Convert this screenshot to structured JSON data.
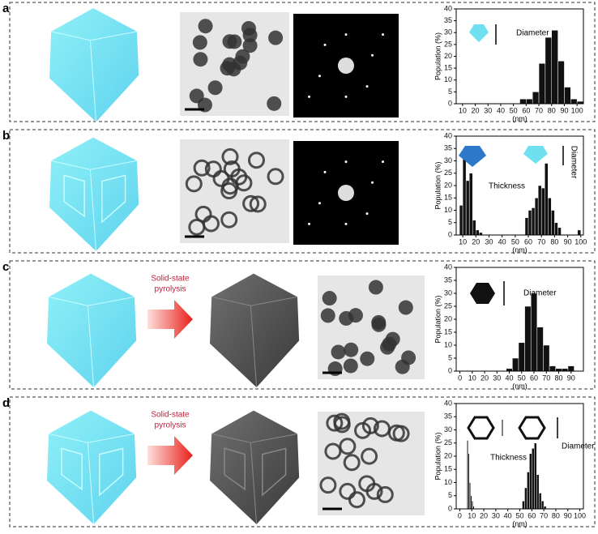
{
  "panel_labels": [
    "a",
    "b",
    "c",
    "d"
  ],
  "process_labels": [
    null,
    null,
    [
      "Solid-state",
      "pyrolysis"
    ],
    [
      "Solid-state",
      "pyrolysis"
    ]
  ],
  "chart_data": [
    {
      "type": "histogram",
      "ylabel": "Population (%)",
      "xlabel": "(nm)",
      "annotations": [
        "Diameter"
      ],
      "bins": [
        55,
        60,
        65,
        70,
        75,
        80,
        85,
        90,
        95,
        100,
        105
      ],
      "values": [
        2,
        2,
        5,
        17,
        28,
        31,
        18,
        7,
        2,
        1
      ],
      "color": "#111111",
      "xlim": [
        5,
        105
      ],
      "xticks": [
        10,
        20,
        30,
        40,
        50,
        60,
        70,
        80,
        90,
        100
      ],
      "ylim": [
        0,
        40
      ],
      "yticks": [
        0,
        5,
        10,
        15,
        20,
        25,
        30,
        35,
        40
      ]
    },
    {
      "type": "histogram",
      "ylabel": "Population (%)",
      "xlabel": "(nm)",
      "annotations": [
        "Thickness",
        "Diameter"
      ],
      "bins": [
        7.5,
        10,
        12.5,
        15,
        17.5,
        20,
        22.5,
        25,
        57.5,
        60,
        62.5,
        65,
        67.5,
        70,
        72.5,
        75,
        77.5,
        80,
        82.5,
        85,
        97.5,
        100
      ],
      "values": [
        12,
        33,
        22,
        25,
        6,
        2,
        1,
        0,
        7,
        10,
        11,
        15,
        20,
        19,
        29,
        15,
        10,
        5,
        3,
        0,
        2
      ],
      "color": "#111111",
      "xlim": [
        5,
        102
      ],
      "xticks": [
        10,
        20,
        30,
        40,
        50,
        60,
        70,
        80,
        90,
        100
      ],
      "ylim": [
        0,
        40
      ],
      "yticks": [
        0,
        5,
        10,
        15,
        20,
        25,
        30,
        35,
        40
      ]
    },
    {
      "type": "histogram",
      "ylabel": "Population (%)",
      "xlabel": "(nm)",
      "annotations": [
        "Diameter"
      ],
      "bins": [
        37.5,
        42.5,
        47.5,
        52.5,
        57.5,
        62.5,
        67.5,
        72.5,
        77.5,
        82.5,
        87.5,
        92.5
      ],
      "values": [
        1,
        5,
        11,
        25,
        30,
        17,
        10,
        2,
        1,
        1,
        2
      ],
      "color": "#111111",
      "xlim": [
        -3,
        100
      ],
      "xticks": [
        0,
        10,
        20,
        30,
        40,
        50,
        60,
        70,
        80,
        90
      ],
      "ylim": [
        0,
        40
      ],
      "yticks": [
        0,
        5,
        10,
        15,
        20,
        25,
        30,
        35,
        40
      ]
    },
    {
      "type": "histogram",
      "ylabel": "Population (%)",
      "xlabel": "(nm)",
      "annotations": [
        "Thickness",
        "Diameter"
      ],
      "bins": [
        6,
        7,
        8,
        9,
        10,
        11,
        12,
        52,
        54,
        56,
        58,
        60,
        62,
        64,
        66,
        68,
        70,
        72
      ],
      "values": [
        26,
        21,
        10,
        5,
        3,
        1,
        0,
        3,
        8,
        14,
        21,
        23,
        25,
        13,
        6,
        3,
        1
      ],
      "color": "#111111",
      "xlim": [
        -3,
        103
      ],
      "xticks": [
        0,
        10,
        20,
        30,
        40,
        50,
        60,
        70,
        80,
        90,
        100
      ],
      "ylim": [
        0,
        40
      ],
      "yticks": [
        0,
        5,
        10,
        15,
        20,
        25,
        30,
        35,
        40
      ]
    }
  ]
}
